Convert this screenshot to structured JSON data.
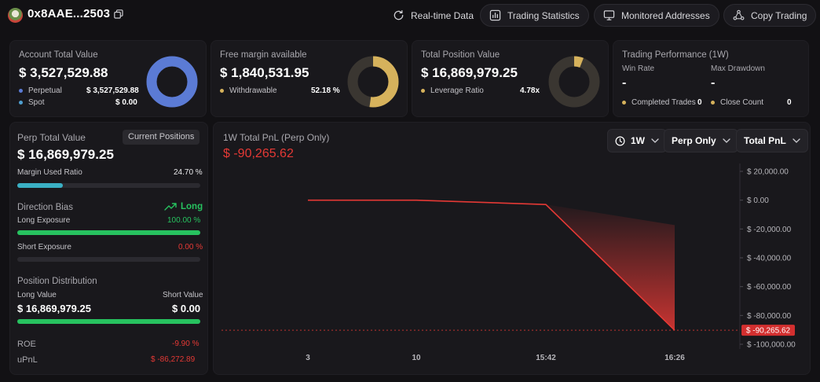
{
  "header": {
    "address": "0x8AAE...2503",
    "buttons": {
      "realtime": "Real-time Data",
      "stats": "Trading Statistics",
      "monitored": "Monitored Addresses",
      "copy": "Copy Trading"
    }
  },
  "cards": {
    "account": {
      "label": "Account Total Value",
      "value": "$ 3,527,529.88",
      "rows": [
        {
          "label": "Perpetual",
          "value": "$ 3,527,529.88",
          "color": "#5b7bd5"
        },
        {
          "label": "Spot",
          "value": "$ 0.00",
          "color": "#4f9fd0"
        }
      ],
      "donut_perpetual_fraction": 1.0
    },
    "margin": {
      "label": "Free margin available",
      "value": "$ 1,840,531.95",
      "row_label": "Withdrawable",
      "row_value": "52.18 %",
      "color": "#d6b25c",
      "fraction": 0.5218
    },
    "position": {
      "label": "Total Position Value",
      "value": "$ 16,869,979.25",
      "row_label": "Leverage Ratio",
      "row_value": "4.78x",
      "color": "#d6b25c",
      "fraction": 0.06
    },
    "performance": {
      "label": "Trading Performance (1W)",
      "win_rate_label": "Win Rate",
      "win_rate_value": "-",
      "drawdown_label": "Max Drawdown",
      "drawdown_value": "-",
      "completed_label": "Completed Trades",
      "completed_value": "0",
      "close_label": "Close Count",
      "close_value": "0",
      "dot_color": "#d6b25c"
    }
  },
  "left_panel": {
    "title": "Perp Total Value",
    "tab": "Current Positions",
    "value": "$ 16,869,979.25",
    "margin_used_label": "Margin Used Ratio",
    "margin_used_value": "24.70 %",
    "margin_used_fraction": 0.247,
    "direction_label": "Direction Bias",
    "direction_value": "Long",
    "long_exposure_label": "Long Exposure",
    "long_exposure_value": "100.00 %",
    "long_exposure_fraction": 1.0,
    "short_exposure_label": "Short Exposure",
    "short_exposure_value": "0.00 %",
    "short_exposure_fraction": 0.0,
    "distribution_label": "Position Distribution",
    "long_value_label": "Long Value",
    "short_value_label": "Short Value",
    "long_value": "$ 16,869,979.25",
    "short_value": "$ 0.00",
    "distribution_long_fraction": 1.0,
    "roe_label": "ROE",
    "roe_value": "-9.90 %",
    "upnl_label": "uPnL",
    "upnl_value": "$ -86,272.89",
    "colors": {
      "teal": "#3ab0c4",
      "green": "#27c25f",
      "red": "#e53935"
    }
  },
  "chart_panel": {
    "title": "1W Total PnL (Perp Only)",
    "value": "$ -90,265.62",
    "controls": {
      "range": "1W",
      "mode": "Perp Only",
      "metric": "Total PnL"
    }
  },
  "chart_data": {
    "type": "area",
    "title": "1W Total PnL (Perp Only)",
    "x": [
      "3",
      "10",
      "15:42",
      "16:26"
    ],
    "series": [
      {
        "values": [
          0,
          0,
          -3000,
          -90265.62
        ]
      }
    ],
    "y_ticks": [
      20000,
      0,
      -20000,
      -40000,
      -60000,
      -80000,
      -100000
    ],
    "y_tick_labels": [
      "$ 20,000.00",
      "$ 0.00",
      "$ -20,000.00",
      "$ -40,000.00",
      "$ -60,000.00",
      "$ -80,000.00",
      "$ -100,000.00"
    ],
    "ylim": [
      -100000,
      20000
    ],
    "current_label": "$ -90,265.62",
    "current_value": -90265.62,
    "line_color": "#e53935",
    "grid": false
  }
}
